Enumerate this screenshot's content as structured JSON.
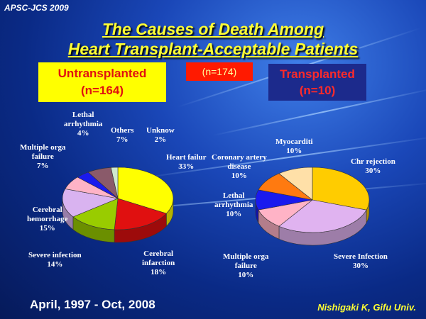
{
  "slide": {
    "conference": "APSC-JCS 2009",
    "title_line1": "The Causes of Death Among",
    "title_line2": "Heart Transplant-Acceptable Patients",
    "total_label": "(n=174)",
    "period": "April, 1997 - Oct, 2008",
    "credit": "Nishigaki K, Gifu Univ."
  },
  "chart_data": [
    {
      "type": "pie",
      "title": "Untransplanted\n(n=164)",
      "slices": [
        {
          "label": "Heart failure",
          "display": "Heart failur\n33%",
          "value": 33,
          "color": "#ffff00"
        },
        {
          "label": "Cerebral infarction",
          "display": "Cerebral\ninfarction\n18%",
          "value": 18,
          "color": "#e01010"
        },
        {
          "label": "Severe infection",
          "display": "Severe infection\n14%",
          "value": 14,
          "color": "#99cc00"
        },
        {
          "label": "Cerebral hemorrhage",
          "display": "Cerebral\nhemorrhage\n15%",
          "value": 15,
          "color": "#d9b3f0"
        },
        {
          "label": "Multiple organ failure",
          "display": "Multiple orga\nfailure\n7%",
          "value": 7,
          "color": "#ffb3c6"
        },
        {
          "label": "Lethal arrhythmia",
          "display": "Lethal\narrhythmia\n4%",
          "value": 4,
          "color": "#1a1aee"
        },
        {
          "label": "Others",
          "display": "Others\n7%",
          "value": 7,
          "color": "#8a5a6a"
        },
        {
          "label": "Unknown",
          "display": "Unknow\n2%",
          "value": 2,
          "color": "#cfe8cf"
        }
      ]
    },
    {
      "type": "pie",
      "title": "Transplanted\n(n=10)",
      "slices": [
        {
          "label": "Chronic rejection",
          "display": "Chr rejection\n30%",
          "value": 30,
          "color": "#ffcc00"
        },
        {
          "label": "Severe infection",
          "display": "Severe Infection\n30%",
          "value": 30,
          "color": "#e0b3f0"
        },
        {
          "label": "Multiple organ failure",
          "display": "Multiple orga\nfailure\n10%",
          "value": 10,
          "color": "#ffb3c6"
        },
        {
          "label": "Lethal arrhythmia",
          "display": "Lethal\narrhythmia\n10%",
          "value": 10,
          "color": "#1a1aee"
        },
        {
          "label": "Coronary artery disease",
          "display": "Coronary artery\ndisease\n10%",
          "value": 10,
          "color": "#ff7a10"
        },
        {
          "label": "Myocarditis",
          "display": "Myocarditi\n10%",
          "value": 10,
          "color": "#ffe0a8"
        }
      ]
    }
  ],
  "colors": {
    "title": "#ffff33",
    "background": "#1a47b8"
  }
}
